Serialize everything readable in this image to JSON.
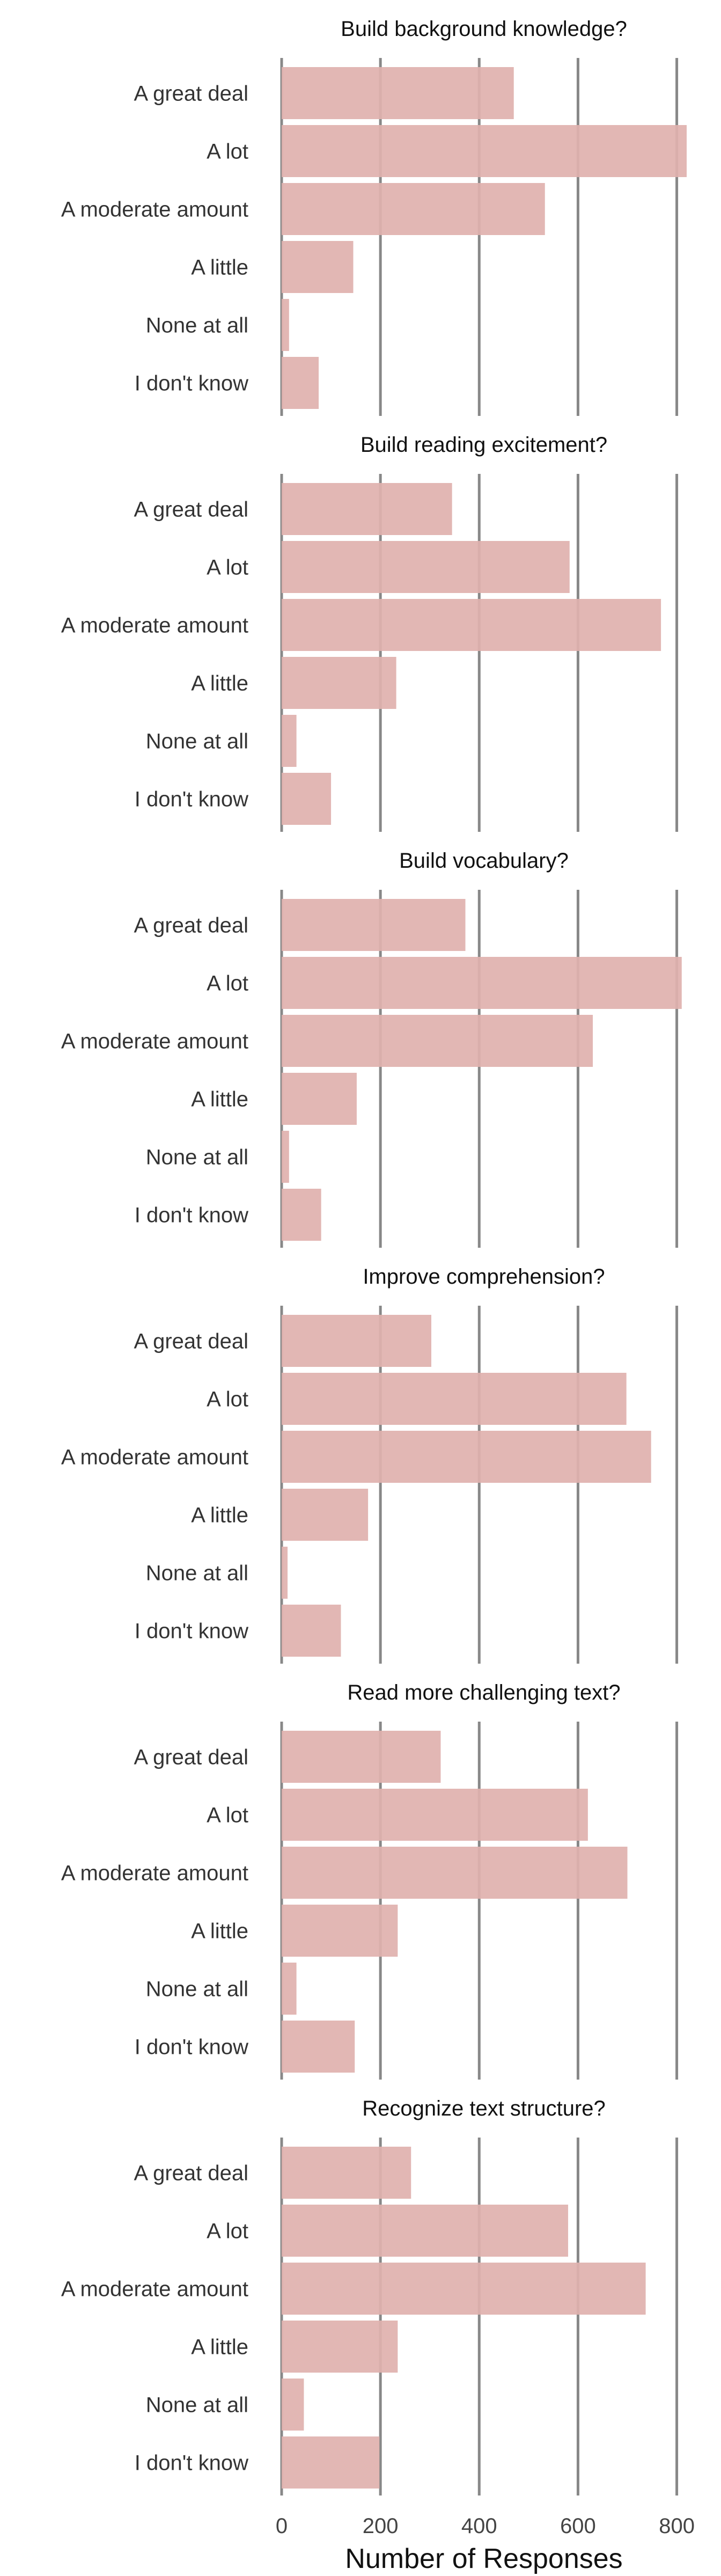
{
  "chart_data": {
    "type": "bar",
    "orientation": "horizontal",
    "bar_color": "#dfb1ae",
    "grid_color": "#888888",
    "grid": true,
    "xlabel": "Number of Responses",
    "xlim": [
      0,
      820
    ],
    "xticks": [
      0,
      200,
      400,
      600,
      800
    ],
    "categories": [
      "A great deal",
      "A lot",
      "A moderate amount",
      "A little",
      "None at all",
      "I don't know"
    ],
    "panels": [
      {
        "title": "Build background knowledge?",
        "values": [
          470,
          820,
          533,
          145,
          15,
          75
        ]
      },
      {
        "title": "Build reading excitement?",
        "values": [
          345,
          583,
          768,
          232,
          30,
          100
        ]
      },
      {
        "title": "Build vocabulary?",
        "values": [
          372,
          810,
          630,
          152,
          15,
          80
        ]
      },
      {
        "title": "Improve comprehension?",
        "values": [
          303,
          698,
          748,
          175,
          12,
          120
        ]
      },
      {
        "title": "Read more challenging text?",
        "values": [
          322,
          620,
          700,
          235,
          30,
          148
        ]
      },
      {
        "title": "Recognize text structure?",
        "values": [
          262,
          580,
          737,
          235,
          45,
          198
        ]
      }
    ]
  }
}
